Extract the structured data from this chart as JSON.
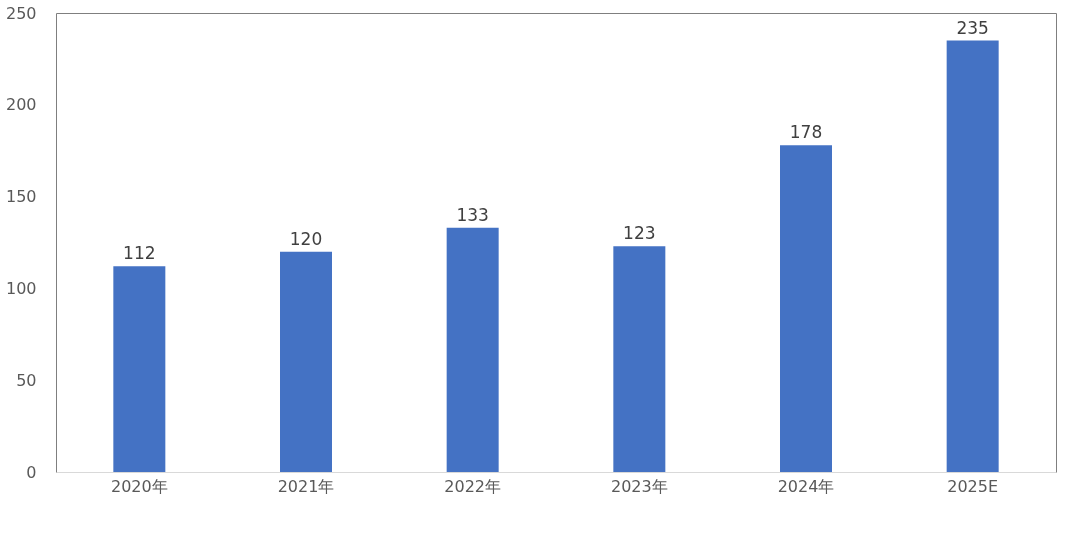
{
  "chart_data": {
    "type": "bar",
    "categories": [
      "2020年",
      "2021年",
      "2022年",
      "2023年",
      "2024年",
      "2025E"
    ],
    "values": [
      112,
      120,
      133,
      123,
      178,
      235
    ],
    "color": "#4472c4",
    "ylim": [
      0,
      250
    ],
    "yticks": [
      0,
      50,
      100,
      150,
      200,
      250
    ],
    "grid": false,
    "data_labels": true
  }
}
